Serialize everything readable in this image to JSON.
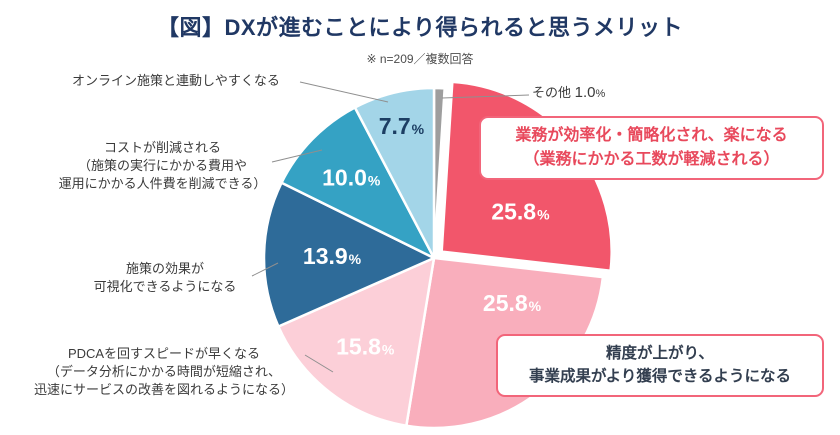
{
  "header": {
    "title": "【図】DXが進むことにより得られると思うメリット",
    "note": "※ n=209／複数回答"
  },
  "chart_data": {
    "type": "pie",
    "title": "【図】DXが進むことにより得られると思うメリット",
    "note": "※ n=209／複数回答",
    "unit": "%",
    "total": 100.0,
    "start_angle_deg": 0,
    "direction": "clockwise",
    "slices": [
      {
        "label": "その他",
        "value": 1.0,
        "color": "#9e9e9e",
        "show_pct": false
      },
      {
        "label": "業務が効率化・簡略化され、楽になる（業務にかかる工数が軽減される）",
        "value": 25.8,
        "color": "#f2566b",
        "pct_color": "#ffffff",
        "exploded": true,
        "label_angle": 63,
        "label_r": 0.52
      },
      {
        "label": "精度が上がり、事業成果がより獲得できるようになる",
        "value": 25.8,
        "color": "#f9aebc",
        "pct_color": "#ffffff",
        "label_angle": 120,
        "label_r": 0.53
      },
      {
        "label": "PDCAを回すスピードが早くなる（データ分析にかかる時間が短縮され、迅速にサービスの改善を図れるようになる）",
        "value": 15.8,
        "color": "#fccfd8",
        "pct_color": "#ffffff",
        "label_r": 0.66
      },
      {
        "label": "施策の効果が可視化できるようになる",
        "value": 13.9,
        "color": "#2e6b99",
        "pct_color": "#ffffff",
        "label_r": 0.6
      },
      {
        "label": "コストが削減される（施策の実行にかかる費用や運用にかかる人件費を削減できる）",
        "value": 10.0,
        "color": "#35a2c4",
        "pct_color": "#ffffff",
        "label_r": 0.68
      },
      {
        "label": "オンライン施策と連動しやすくなる",
        "value": 7.7,
        "color": "#a3d5e8",
        "pct_color": "#1c3e63",
        "label_r": 0.8
      }
    ]
  },
  "side_labels": {
    "online": "オンライン施策と連動しやすくなる",
    "cost": "コストが削減される\n（施策の実行にかかる費用や\n運用にかかる人件費を削減できる）",
    "effect": "施策の効果が\n可視化できるようになる",
    "pdca": "PDCAを回すスピードが早くなる\n（データ分析にかかる時間が短縮され、\n迅速にサービスの改善を図れるようになる）",
    "other_label": "その他",
    "other_value": "1.0",
    "other_unit": "%"
  },
  "callouts": {
    "efficiency": "業務が効率化・簡略化され、楽になる\n（業務にかかる工数が軽減される）",
    "accuracy": "精度が上がり、\n事業成果がより獲得できるようになる"
  },
  "colors": {
    "title": "#203864",
    "callout_border": "#f2657a",
    "callout_red_text": "#e8495c",
    "callout_navy_text": "#333f50",
    "leader_line": "#8f8f8f"
  }
}
